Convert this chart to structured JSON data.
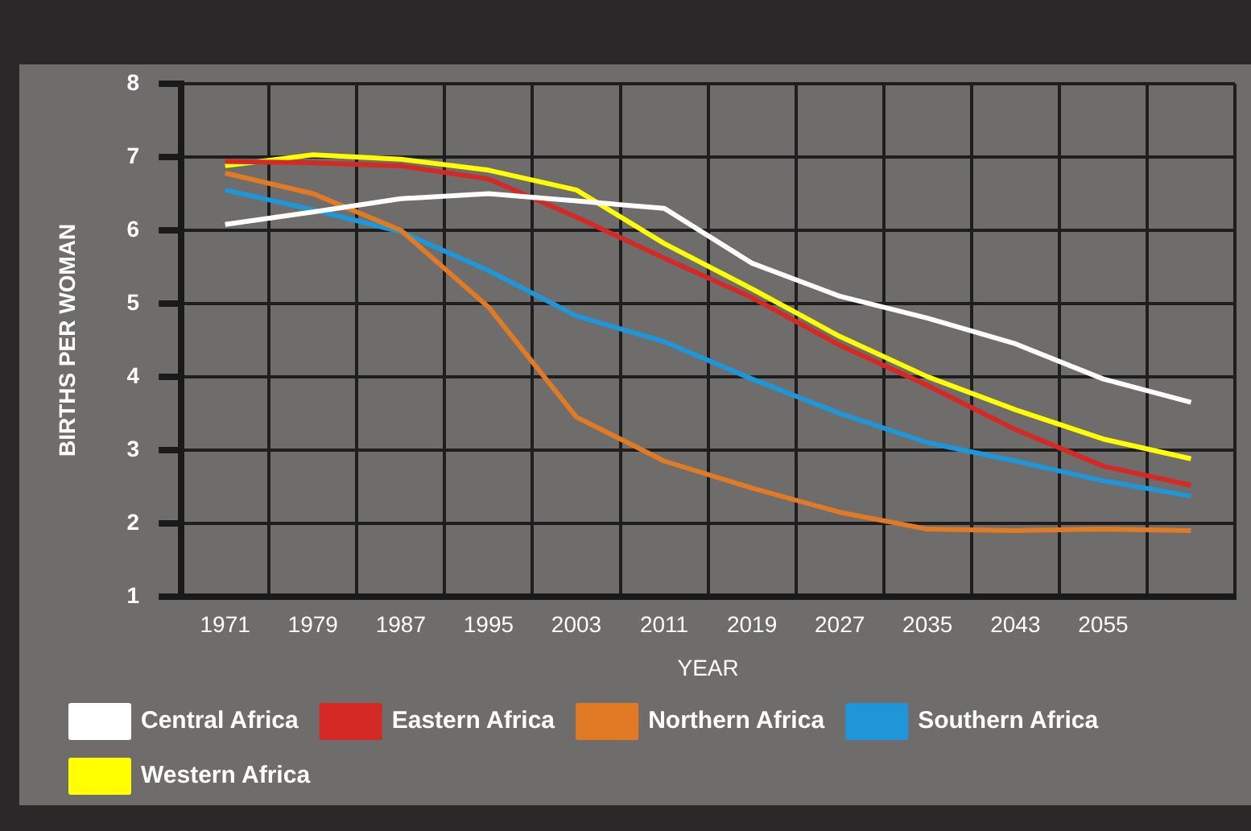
{
  "chart_data": {
    "type": "line",
    "xlabel": "YEAR",
    "ylabel": "BIRTHS PER WOMAN",
    "categories": [
      "1971",
      "1979",
      "1987",
      "1995",
      "2003",
      "2011",
      "2019",
      "2027",
      "2035",
      "2043",
      "2055",
      null
    ],
    "series": [
      {
        "name": "Central Africa",
        "color": "#ffffff",
        "values": [
          6.08,
          6.25,
          6.43,
          6.5,
          6.4,
          6.3,
          5.55,
          5.1,
          4.8,
          4.45,
          3.97,
          3.65
        ]
      },
      {
        "name": "Eastern Africa",
        "color": "#d42a26",
        "values": [
          6.94,
          6.92,
          6.88,
          6.7,
          6.18,
          5.62,
          5.08,
          4.43,
          3.88,
          3.28,
          2.78,
          2.52
        ]
      },
      {
        "name": "Northern Africa",
        "color": "#e07a24",
        "values": [
          6.78,
          6.5,
          6.0,
          4.95,
          3.45,
          2.85,
          2.48,
          2.15,
          1.92,
          1.9,
          1.92,
          1.9
        ]
      },
      {
        "name": "Southern Africa",
        "color": "#1e96d8",
        "values": [
          6.55,
          6.28,
          5.98,
          5.45,
          4.83,
          4.48,
          3.97,
          3.5,
          3.1,
          2.85,
          2.58,
          2.37
        ]
      },
      {
        "name": "Western Africa",
        "color": "#ffff00",
        "values": [
          6.88,
          7.03,
          6.97,
          6.82,
          6.55,
          5.82,
          5.2,
          4.55,
          4.0,
          3.55,
          3.15,
          2.88
        ]
      }
    ],
    "ylim": [
      1,
      8
    ],
    "yticks": [
      1,
      2,
      3,
      4,
      5,
      6,
      7,
      8
    ],
    "grid": true,
    "legend": "bottom",
    "marker": "none",
    "line_style": "solid"
  }
}
